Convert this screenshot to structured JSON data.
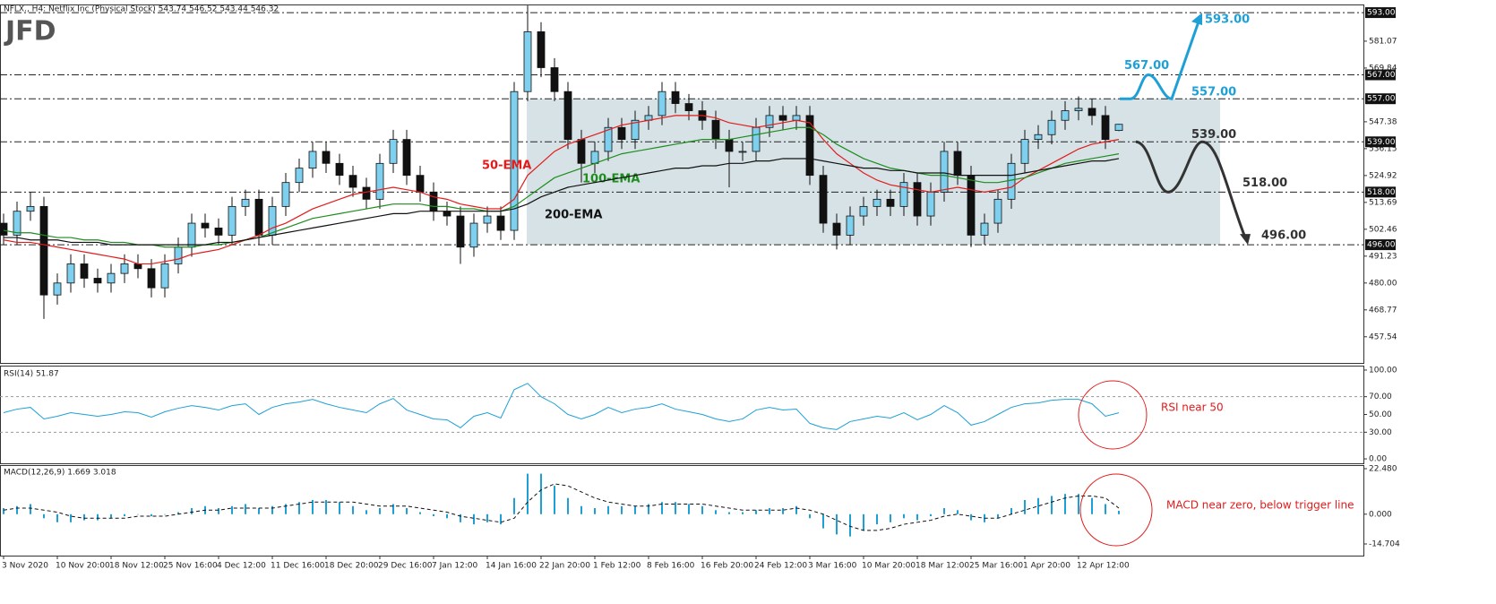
{
  "chart_data": [
    {
      "type": "candlestick",
      "title": "NFLX., H4:  Netflix Inc (Physical Stock)  543.74 546.52 543.44 546.32",
      "watermark": "JFD",
      "categories": [
        "3 Nov 2020",
        null,
        null,
        null,
        "10 Nov 20:00",
        null,
        null,
        null,
        "18 Nov 12:00",
        null,
        null,
        null,
        "25 Nov 16:00",
        null,
        null,
        null,
        "4 Dec 12:00",
        null,
        null,
        null,
        "11 Dec 16:00",
        null,
        null,
        null,
        "18 Dec 20:00",
        null,
        null,
        null,
        "29 Dec 16:00",
        null,
        null,
        null,
        "7 Jan 12:00",
        null,
        null,
        null,
        "14 Jan 16:00",
        null,
        null,
        null,
        "22 Jan 20:00",
        null,
        null,
        null,
        "1 Feb 12:00",
        null,
        null,
        null,
        "8 Feb 16:00",
        null,
        null,
        null,
        "16 Feb 20:00",
        null,
        null,
        null,
        "24 Feb 12:00",
        null,
        null,
        null,
        "3 Mar 16:00",
        null,
        null,
        null,
        "10 Mar 20:00",
        null,
        null,
        null,
        "18 Mar 12:00",
        null,
        null,
        null,
        "25 Mar 16:00",
        null,
        null,
        null,
        "1 Apr 20:00",
        null,
        null,
        null,
        "12 Apr 12:00",
        null,
        null,
        null
      ],
      "open": [
        505,
        500,
        510,
        512,
        475,
        480,
        488,
        482,
        480,
        484,
        488,
        486,
        478,
        488,
        495,
        505,
        503,
        500,
        512,
        515,
        500,
        512,
        522,
        528,
        535,
        530,
        525,
        520,
        515,
        530,
        540,
        525,
        518,
        510,
        508,
        495,
        505,
        508,
        502,
        560,
        585,
        570,
        560,
        540,
        530,
        535,
        545,
        540,
        548,
        550,
        560,
        555,
        552,
        548,
        540,
        535,
        535,
        545,
        550,
        548,
        550,
        525,
        505,
        500,
        508,
        512,
        515,
        512,
        522,
        508,
        518,
        535,
        525,
        500,
        505,
        515,
        530,
        540,
        542,
        548,
        552,
        553,
        550,
        543.74
      ],
      "high": [
        509,
        514,
        518,
        516,
        484,
        492,
        492,
        486,
        488,
        492,
        492,
        490,
        492,
        499,
        509,
        509,
        507,
        516,
        519,
        519,
        516,
        526,
        532,
        539,
        539,
        534,
        529,
        524,
        534,
        544,
        544,
        529,
        522,
        514,
        512,
        509,
        512,
        512,
        564,
        596,
        589,
        574,
        564,
        544,
        539,
        549,
        549,
        552,
        554,
        564,
        564,
        559,
        556,
        552,
        544,
        539,
        549,
        554,
        554,
        554,
        554,
        529,
        509,
        512,
        516,
        519,
        519,
        526,
        526,
        522,
        539,
        539,
        529,
        509,
        519,
        534,
        544,
        546,
        552,
        556,
        558,
        557,
        554,
        546.52
      ],
      "low": [
        496,
        496,
        506,
        465,
        471,
        476,
        478,
        476,
        476,
        480,
        482,
        474,
        474,
        484,
        491,
        499,
        496,
        496,
        508,
        496,
        496,
        508,
        518,
        524,
        526,
        521,
        516,
        511,
        511,
        526,
        521,
        514,
        506,
        504,
        488,
        491,
        501,
        498,
        498,
        556,
        566,
        556,
        536,
        522,
        526,
        531,
        536,
        536,
        544,
        546,
        551,
        548,
        544,
        536,
        520,
        531,
        531,
        541,
        544,
        544,
        521,
        501,
        494,
        496,
        504,
        508,
        508,
        508,
        504,
        504,
        514,
        521,
        495,
        496,
        501,
        511,
        526,
        536,
        538,
        544,
        548,
        546,
        536,
        543.44
      ],
      "close": [
        500,
        510,
        512,
        475,
        480,
        488,
        482,
        480,
        484,
        488,
        486,
        478,
        488,
        495,
        505,
        503,
        500,
        512,
        515,
        500,
        512,
        522,
        528,
        535,
        530,
        525,
        520,
        515,
        530,
        540,
        525,
        518,
        510,
        508,
        495,
        505,
        508,
        502,
        560,
        585,
        570,
        560,
        540,
        530,
        535,
        545,
        540,
        548,
        550,
        560,
        555,
        552,
        548,
        540,
        535,
        535,
        545,
        550,
        548,
        550,
        525,
        505,
        500,
        508,
        512,
        515,
        512,
        522,
        508,
        518,
        535,
        525,
        500,
        505,
        515,
        530,
        540,
        542,
        548,
        552,
        553,
        550,
        540,
        546.32
      ],
      "up_color": "#7fd0ee",
      "down_color": "#111111",
      "lines": [
        {
          "name": "50-EMA",
          "color": "#e31b1b",
          "values": [
            498,
            497,
            497,
            496,
            495,
            494,
            493,
            492,
            491,
            490,
            488,
            488,
            489,
            490,
            492,
            493,
            494,
            496,
            498,
            500,
            503,
            505,
            508,
            511,
            513,
            515,
            517,
            518,
            519,
            520,
            519,
            518,
            516,
            515,
            513,
            512,
            511,
            511,
            515,
            525,
            530,
            535,
            538,
            540,
            542,
            544,
            546,
            547,
            548,
            549,
            550,
            550,
            550,
            549,
            547,
            546,
            545,
            546,
            547,
            548,
            547,
            540,
            534,
            530,
            526,
            523,
            521,
            520,
            519,
            518,
            519,
            520,
            519,
            518,
            519,
            520,
            524,
            527,
            530,
            533,
            536,
            538,
            539,
            540
          ]
        },
        {
          "name": "100-EMA",
          "color": "#1e8c1e",
          "values": [
            502,
            501,
            501,
            500,
            499,
            499,
            498,
            498,
            497,
            497,
            496,
            496,
            495,
            495,
            495,
            496,
            496,
            497,
            498,
            499,
            501,
            503,
            505,
            507,
            508,
            509,
            510,
            511,
            512,
            513,
            513,
            513,
            512,
            512,
            511,
            511,
            510,
            510,
            512,
            516,
            520,
            524,
            526,
            528,
            530,
            532,
            534,
            535,
            536,
            537,
            538,
            539,
            540,
            540,
            540,
            541,
            542,
            543,
            544,
            545,
            545,
            542,
            538,
            535,
            532,
            530,
            528,
            527,
            526,
            525,
            525,
            524,
            523,
            522,
            522,
            523,
            524,
            526,
            528,
            530,
            531,
            532,
            533,
            534
          ]
        },
        {
          "name": "200-EMA",
          "color": "#111111",
          "values": [
            499,
            499,
            498,
            498,
            498,
            497,
            497,
            497,
            496,
            496,
            496,
            496,
            496,
            496,
            496,
            496,
            497,
            497,
            498,
            499,
            500,
            501,
            502,
            503,
            504,
            505,
            506,
            507,
            508,
            509,
            509,
            510,
            510,
            510,
            510,
            510,
            510,
            510,
            511,
            513,
            516,
            518,
            520,
            521,
            522,
            523,
            524,
            525,
            526,
            527,
            528,
            528,
            529,
            529,
            530,
            530,
            531,
            531,
            532,
            532,
            532,
            531,
            530,
            529,
            528,
            528,
            527,
            527,
            526,
            526,
            526,
            525,
            525,
            525,
            525,
            525,
            526,
            527,
            528,
            529,
            530,
            531,
            531,
            532
          ]
        }
      ],
      "levels": [
        {
          "value": 593,
          "label": "593.00",
          "color": "#1ea0d6"
        },
        {
          "value": 567,
          "label": "567.00",
          "color": "#1ea0d6"
        },
        {
          "value": 557,
          "label": "557.00",
          "color": "#1ea0d6"
        },
        {
          "value": 539,
          "label": "539.00",
          "color": "#333333"
        },
        {
          "value": 518,
          "label": "518.00",
          "color": "#333333"
        },
        {
          "value": 496,
          "label": "496.00",
          "color": "#333333"
        }
      ],
      "ylim": [
        446.6,
        596.4
      ],
      "yticks": [
        581.07,
        569.84,
        547.38,
        536.15,
        524.92,
        513.69,
        502.46,
        491.23,
        {
          "value": 480,
          "label": "480.00"
        },
        468.77,
        457.54
      ]
    },
    {
      "type": "line",
      "title": "RSI(14) 51.87",
      "annotation": "RSI near 50",
      "series": [
        {
          "color": "#1ea0d6",
          "values": [
            52,
            56,
            58,
            45,
            48,
            52,
            50,
            48,
            50,
            53,
            52,
            47,
            53,
            57,
            60,
            58,
            55,
            60,
            62,
            50,
            58,
            62,
            64,
            67,
            62,
            58,
            55,
            52,
            62,
            68,
            55,
            50,
            45,
            44,
            35,
            48,
            52,
            46,
            78,
            85,
            70,
            62,
            50,
            45,
            50,
            58,
            52,
            56,
            58,
            62,
            56,
            53,
            50,
            45,
            42,
            45,
            55,
            58,
            55,
            56,
            40,
            35,
            33,
            42,
            45,
            48,
            46,
            52,
            44,
            50,
            60,
            52,
            38,
            42,
            50,
            58,
            62,
            63,
            66,
            67,
            67,
            62,
            48,
            51.87
          ]
        }
      ],
      "dashed_levels": [
        70,
        30
      ],
      "ylim": [
        -5,
        105
      ],
      "yticks": [
        {
          "value": 100,
          "label": "100.00"
        },
        {
          "value": 70,
          "label": "70.00"
        },
        {
          "value": 50,
          "label": "50.00"
        },
        {
          "value": 30,
          "label": "30.00"
        },
        {
          "value": 0,
          "label": "0.00"
        }
      ]
    },
    {
      "type": "macd",
      "title": "MACD(12,26,9) 1.669 3.018",
      "annotation": "MACD near zero, below trigger line",
      "histogram": [
        3,
        4,
        5,
        -2,
        -4,
        -4,
        -3,
        -3,
        -2,
        -1,
        0,
        -1,
        0,
        1,
        3,
        4,
        3,
        4,
        5,
        3,
        4,
        5,
        6,
        7,
        7,
        6,
        4,
        2,
        3,
        5,
        3,
        1,
        -1,
        -2,
        -4,
        -5,
        -4,
        -5,
        8,
        20,
        20,
        14,
        8,
        4,
        3,
        4,
        4,
        4,
        5,
        6,
        6,
        5,
        4,
        2,
        1,
        1,
        2,
        3,
        3,
        4,
        -2,
        -7,
        -10,
        -11,
        -8,
        -5,
        -4,
        -2,
        -3,
        -1,
        3,
        2,
        -3,
        -4,
        -2,
        3,
        7,
        8,
        9,
        10,
        10,
        8,
        5,
        1.669
      ],
      "signal": [
        2,
        3,
        3,
        2,
        1,
        -1,
        -2,
        -2,
        -2,
        -2,
        -1,
        -1,
        -1,
        0,
        1,
        2,
        2,
        3,
        3,
        3,
        3,
        4,
        5,
        6,
        6,
        6,
        6,
        5,
        4,
        4,
        4,
        3,
        2,
        1,
        -1,
        -2,
        -3,
        -4,
        -2,
        6,
        12,
        15,
        14,
        11,
        8,
        6,
        5,
        4,
        4,
        5,
        5,
        5,
        5,
        4,
        3,
        2,
        2,
        2,
        2,
        3,
        2,
        0,
        -3,
        -6,
        -8,
        -8,
        -7,
        -5,
        -4,
        -3,
        -1,
        0,
        -1,
        -2,
        -2,
        0,
        2,
        4,
        6,
        8,
        9,
        9,
        8,
        3.018
      ],
      "histogram_color": "#1ea0d6",
      "signal_color": "#111111",
      "ylim": [
        -20.46,
        24.25
      ],
      "yticks": [
        {
          "value": 22.48,
          "label": "22.480"
        },
        {
          "value": 0,
          "label": "0.000"
        },
        {
          "value": -14.704,
          "label": "-14.704"
        }
      ]
    }
  ]
}
